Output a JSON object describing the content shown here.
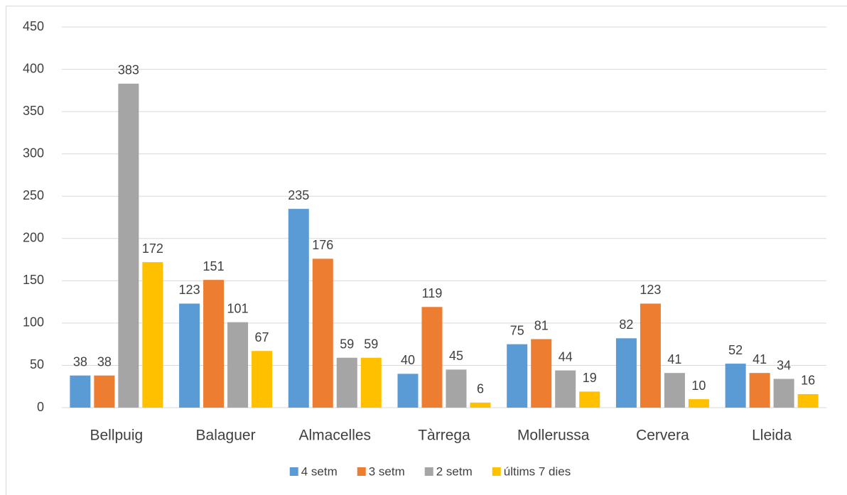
{
  "chart_data": {
    "type": "bar",
    "categories": [
      "Bellpuig",
      "Balaguer",
      "Almacelles",
      "Tàrrega",
      "Mollerussa",
      "Cervera",
      "Lleida"
    ],
    "series": [
      {
        "name": "4 setm",
        "color": "#5b9bd5",
        "values": [
          38,
          123,
          235,
          40,
          75,
          82,
          52
        ]
      },
      {
        "name": "3 setm",
        "color": "#ed7d31",
        "values": [
          38,
          151,
          176,
          119,
          81,
          123,
          41
        ]
      },
      {
        "name": "2 setm",
        "color": "#a5a5a5",
        "values": [
          383,
          101,
          59,
          45,
          44,
          41,
          34
        ]
      },
      {
        "name": "últims 7 dies",
        "color": "#ffc000",
        "values": [
          172,
          67,
          59,
          6,
          19,
          10,
          16
        ]
      }
    ],
    "ylim": [
      0,
      450
    ],
    "yticks": [
      0,
      50,
      100,
      150,
      200,
      250,
      300,
      350,
      400,
      450
    ],
    "grid": true,
    "legend": "bottom",
    "data_labels": true
  }
}
